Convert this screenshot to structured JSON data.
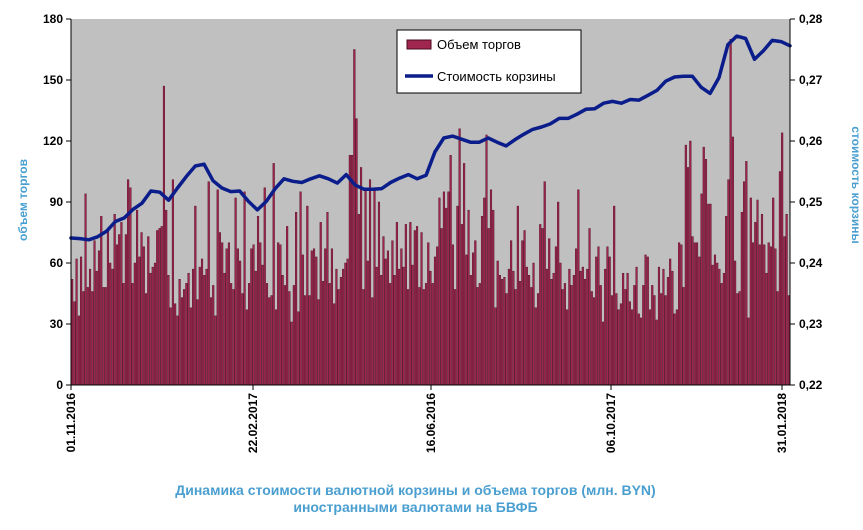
{
  "chart_data": {
    "type": "bar+line",
    "caption_line1": "Динамика стоимости валютной корзины и объема торгов (млн. BYN)",
    "caption_line2": "иностранными валютами на БВФБ",
    "ylabel_left": "объем торгов",
    "ylabel_right": "стоимость корзины",
    "ylim_left": [
      0,
      180
    ],
    "ylim_right": [
      0.22,
      0.28
    ],
    "yticks_left": [
      "0",
      "30",
      "60",
      "90",
      "120",
      "150",
      "180"
    ],
    "yticks_right": [
      "0,22",
      "0,23",
      "0,24",
      "0,25",
      "0,26",
      "0,27",
      "0,28"
    ],
    "xticks": [
      "01.11.2016",
      "22.02.2017",
      "16.06.2016",
      "06.10.2017",
      "31.01.2018"
    ],
    "legend": {
      "placement": "top-center",
      "bar_label": "Объем торгов",
      "line_label": "Стоимость корзины"
    },
    "colors": {
      "plot_bg": "#c0c0c0",
      "bar_fill": "#a0254f",
      "bar_outline": "#4a0a1f",
      "line": "#0a1d8a",
      "axis_title": "#4a9fd0"
    },
    "volume_series_name": "Объем торгов",
    "volume": [
      52,
      41,
      62,
      34,
      63,
      46,
      94,
      48,
      57,
      46,
      71,
      56,
      66,
      83,
      48,
      48,
      76,
      60,
      57,
      84,
      69,
      74,
      80,
      50,
      74,
      101,
      97,
      50,
      60,
      86,
      63,
      75,
      68,
      45,
      73,
      55,
      58,
      60,
      76,
      77,
      78,
      147,
      86,
      54,
      38,
      101,
      40,
      34,
      52,
      43,
      47,
      50,
      55,
      38,
      57,
      88,
      42,
      58,
      62,
      54,
      57,
      100,
      43,
      49,
      34,
      96,
      75,
      70,
      55,
      67,
      70,
      50,
      47,
      92,
      67,
      61,
      45,
      95,
      37,
      50,
      67,
      69,
      56,
      83,
      70,
      59,
      97,
      50,
      43,
      44,
      109,
      37,
      70,
      69,
      54,
      49,
      78,
      46,
      31,
      49,
      85,
      36,
      95,
      64,
      44,
      88,
      44,
      66,
      67,
      63,
      42,
      80,
      51,
      67,
      85,
      50,
      67,
      40,
      57,
      47,
      53,
      57,
      60,
      62,
      113,
      113,
      165,
      131,
      84,
      107,
      47,
      96,
      61,
      101,
      43,
      96,
      58,
      90,
      54,
      73,
      62,
      66,
      50,
      71,
      54,
      80,
      57,
      67,
      58,
      79,
      47,
      80,
      59,
      76,
      78,
      48,
      75,
      47,
      50,
      70,
      56,
      50,
      63,
      68,
      92,
      77,
      95,
      87,
      95,
      113,
      69,
      47,
      88,
      126,
      79,
      109,
      64,
      86,
      54,
      65,
      71,
      48,
      50,
      83,
      92,
      123,
      77,
      96,
      86,
      38,
      61,
      54,
      52,
      53,
      45,
      57,
      71,
      56,
      47,
      88,
      51,
      71,
      76,
      58,
      54,
      48,
      60,
      38,
      45,
      79,
      77,
      100,
      57,
      72,
      52,
      55,
      68,
      90,
      60,
      47,
      50,
      37,
      57,
      49,
      54,
      67,
      96,
      56,
      58,
      52,
      57,
      77,
      46,
      43,
      63,
      68,
      49,
      31,
      57,
      68,
      63,
      44,
      88,
      45,
      37,
      40,
      55,
      47,
      55,
      41,
      37,
      49,
      58,
      35,
      33,
      49,
      64,
      63,
      37,
      49,
      44,
      32,
      58,
      45,
      57,
      44,
      53,
      62,
      56,
      35,
      37,
      70,
      69,
      48,
      118,
      107,
      120,
      73,
      70,
      70,
      63,
      94,
      117,
      111,
      89,
      89,
      59,
      64,
      60,
      57,
      50,
      55,
      83,
      101,
      170,
      122,
      61,
      45,
      46,
      85,
      100,
      110,
      33,
      92,
      70,
      80,
      91,
      69,
      84,
      69,
      55,
      70,
      68,
      92,
      67,
      46,
      105,
      124,
      73,
      84,
      44
    ],
    "basket_series_name": "Стоимость корзины",
    "basket": [
      0.2441,
      0.244,
      0.2438,
      0.2443,
      0.2452,
      0.2468,
      0.2474,
      0.2488,
      0.2498,
      0.2518,
      0.2516,
      0.2503,
      0.2523,
      0.2542,
      0.2559,
      0.2562,
      0.2535,
      0.2523,
      0.2517,
      0.2518,
      0.2501,
      0.2487,
      0.2501,
      0.2522,
      0.2538,
      0.2534,
      0.2532,
      0.2538,
      0.2543,
      0.2538,
      0.2531,
      0.2545,
      0.2528,
      0.2521,
      0.2521,
      0.2522,
      0.2532,
      0.2539,
      0.2545,
      0.2538,
      0.2544,
      0.2582,
      0.2605,
      0.2608,
      0.2603,
      0.2598,
      0.2598,
      0.2605,
      0.2598,
      0.2592,
      0.2602,
      0.2611,
      0.2619,
      0.2623,
      0.2628,
      0.2637,
      0.2637,
      0.2644,
      0.2652,
      0.2653,
      0.2662,
      0.2665,
      0.2662,
      0.2668,
      0.2667,
      0.2675,
      0.2683,
      0.2698,
      0.2705,
      0.2706,
      0.2706,
      0.2688,
      0.2678,
      0.2704,
      0.2758,
      0.2772,
      0.2768,
      0.2734,
      0.2748,
      0.2765,
      0.2763,
      0.2756
    ]
  }
}
